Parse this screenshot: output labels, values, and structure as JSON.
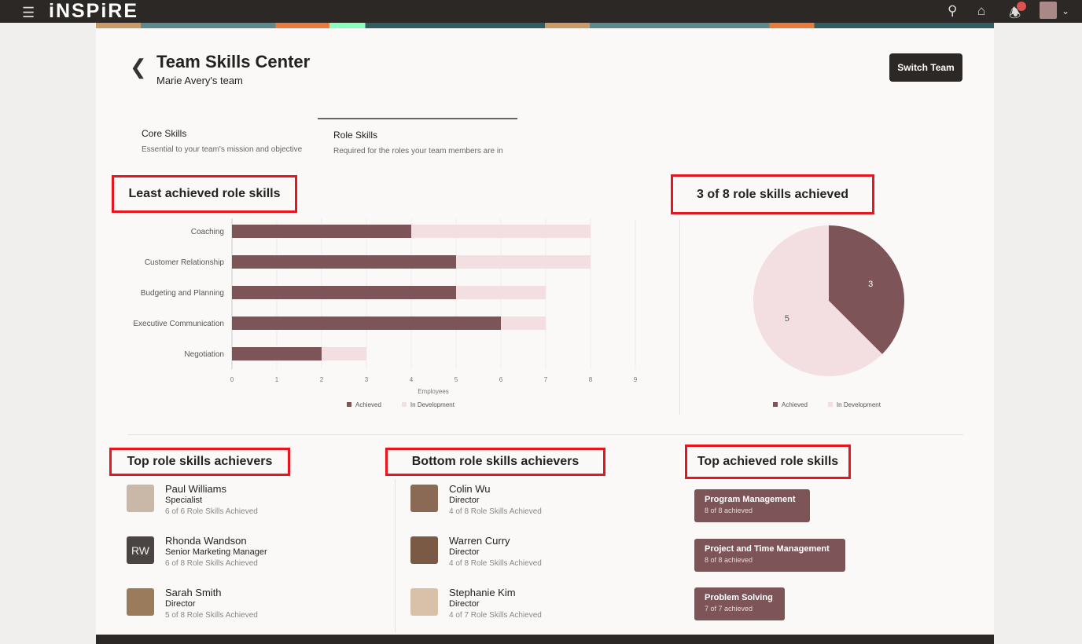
{
  "topbar": {
    "brand": "iNSPiRE",
    "icons": [
      "menu-icon",
      "search-icon",
      "home-icon",
      "bell-icon",
      "avatar"
    ]
  },
  "header": {
    "title": "Team Skills Center",
    "subtitle": "Marie Avery's team",
    "switch_label": "Switch Team"
  },
  "tabs": [
    {
      "label": "Core Skills",
      "desc": "Essential to your team's mission and objective",
      "active": false
    },
    {
      "label": "Role Skills",
      "desc": "Required for the roles your team members are in",
      "active": true
    }
  ],
  "sections": {
    "least": "Least achieved role skills",
    "summary": "3 of 8 role skills achieved",
    "top": "Top role skills achievers",
    "bottom": "Bottom role skills achievers",
    "topskills": "Top achieved role skills"
  },
  "chart_data": [
    {
      "type": "bar",
      "stacked": true,
      "orientation": "horizontal",
      "categories": [
        "Coaching",
        "Customer Relationship",
        "Budgeting and Planning",
        "Executive Communication",
        "Negotiation"
      ],
      "series": [
        {
          "name": "Achieved",
          "values": [
            4,
            5,
            5,
            6,
            2
          ],
          "color": "#7d5558"
        },
        {
          "name": "In Development",
          "values": [
            4,
            3,
            2,
            1,
            1
          ],
          "color": "#f3dfe1"
        }
      ],
      "xlabel": "Employees",
      "xlim": [
        0,
        9
      ],
      "xticks": [
        "0",
        "1",
        "2",
        "3",
        "4",
        "5",
        "6",
        "7",
        "8",
        "9"
      ],
      "grid": true,
      "legend": "bottom"
    },
    {
      "type": "pie",
      "labels": [
        "Achieved",
        "In Development"
      ],
      "values": [
        3,
        5
      ],
      "colors": [
        "#7d5558",
        "#f3dfe1"
      ],
      "legend": "bottom"
    }
  ],
  "top_achievers": [
    {
      "name": "Paul Williams",
      "role": "Specialist",
      "stat": "6 of 6 Role Skills Achieved"
    },
    {
      "name": "Rhonda Wandson",
      "role": "Senior Marketing Manager",
      "stat": "6 of 8 Role Skills Achieved",
      "initials": "RW"
    },
    {
      "name": "Sarah Smith",
      "role": "Director",
      "stat": "5 of 8 Role Skills Achieved"
    }
  ],
  "bottom_achievers": [
    {
      "name": "Colin Wu",
      "role": "Director",
      "stat": "4 of 8 Role Skills Achieved"
    },
    {
      "name": "Warren Curry",
      "role": "Director",
      "stat": "4 of 8 Role Skills Achieved"
    },
    {
      "name": "Stephanie Kim",
      "role": "Director",
      "stat": "4 of 7 Role Skills Achieved"
    }
  ],
  "top_skills": [
    {
      "name": "Program Management",
      "stat": "8 of 8 achieved"
    },
    {
      "name": "Project and Time Management",
      "stat": "8 of 8 achieved"
    },
    {
      "name": "Problem Solving",
      "stat": "7 of 7 achieved"
    }
  ]
}
